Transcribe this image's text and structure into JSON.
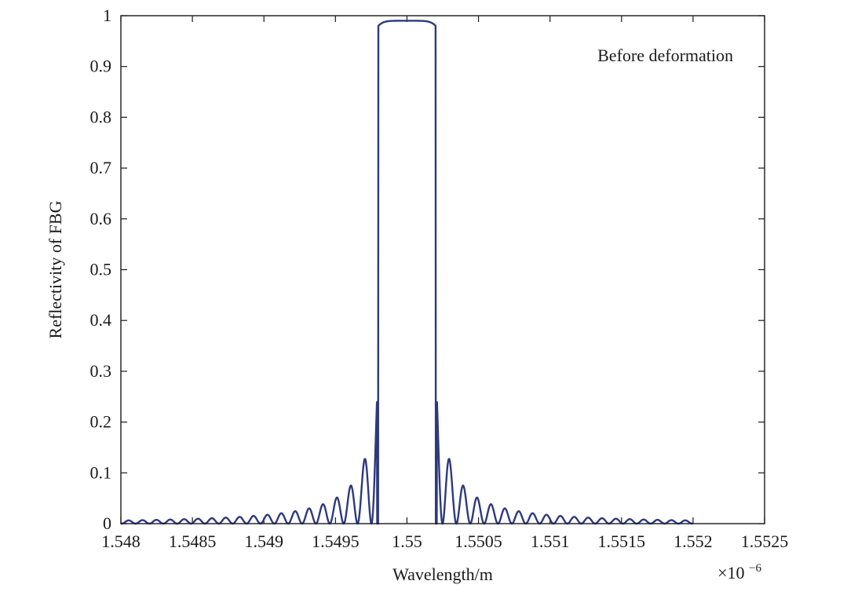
{
  "chart_data": {
    "type": "line",
    "title": "",
    "xlabel": "Wavelength/m",
    "ylabel": "Reflectivity of FBG",
    "x_exponent_label": "×10",
    "x_exponent_power": "−6",
    "xlim": [
      1.548,
      1.5525
    ],
    "ylim": [
      0,
      1
    ],
    "x_ticks": [
      1.548,
      1.5485,
      1.549,
      1.5495,
      1.55,
      1.5505,
      1.551,
      1.5515,
      1.552,
      1.5525
    ],
    "x_tick_labels": [
      "1.548",
      "1.5485",
      "1.549",
      "1.5495",
      "1.55",
      "1.5505",
      "1.551",
      "1.5515",
      "1.552",
      "1.5525"
    ],
    "y_ticks": [
      0,
      0.1,
      0.2,
      0.3,
      0.4,
      0.5,
      0.6,
      0.7,
      0.8,
      0.9,
      1
    ],
    "y_tick_labels": [
      "0",
      "0.1",
      "0.2",
      "0.3",
      "0.4",
      "0.5",
      "0.6",
      "0.7",
      "0.8",
      "0.9",
      "1"
    ],
    "grid": false,
    "legend_position": "top-right",
    "series": [
      {
        "name": "Before deformation",
        "color": "#2e3a7c",
        "x": [
          1.548,
          1.5482,
          1.5484,
          1.5486,
          1.5488,
          1.549,
          1.5491,
          1.5492,
          1.5493,
          1.5494,
          1.54945,
          1.5495,
          1.54955,
          1.5496,
          1.54965,
          1.5497,
          1.54975,
          1.54978,
          1.54982,
          1.54985,
          1.5499,
          1.54995,
          1.55,
          1.55005,
          1.5501,
          1.55015,
          1.55018,
          1.55022,
          1.55025,
          1.5503,
          1.55035,
          1.5504,
          1.55045,
          1.5505,
          1.55055,
          1.5506,
          1.5507,
          1.5508,
          1.5509,
          1.551,
          1.5512,
          1.5514,
          1.5516,
          1.5518,
          1.552
        ],
        "y": [
          0.004,
          0.004,
          0.005,
          0.006,
          0.008,
          0.01,
          0.012,
          0.016,
          0.02,
          0.026,
          0.03,
          0.042,
          0.045,
          0.068,
          0.07,
          0.128,
          0.13,
          0.3,
          0.3,
          0.0,
          0.98,
          0.99,
          0.99,
          0.99,
          0.98,
          0.0,
          0.3,
          0.3,
          0.13,
          0.128,
          0.07,
          0.068,
          0.045,
          0.042,
          0.03,
          0.026,
          0.02,
          0.016,
          0.012,
          0.01,
          0.008,
          0.006,
          0.005,
          0.004,
          0.004
        ]
      }
    ]
  }
}
